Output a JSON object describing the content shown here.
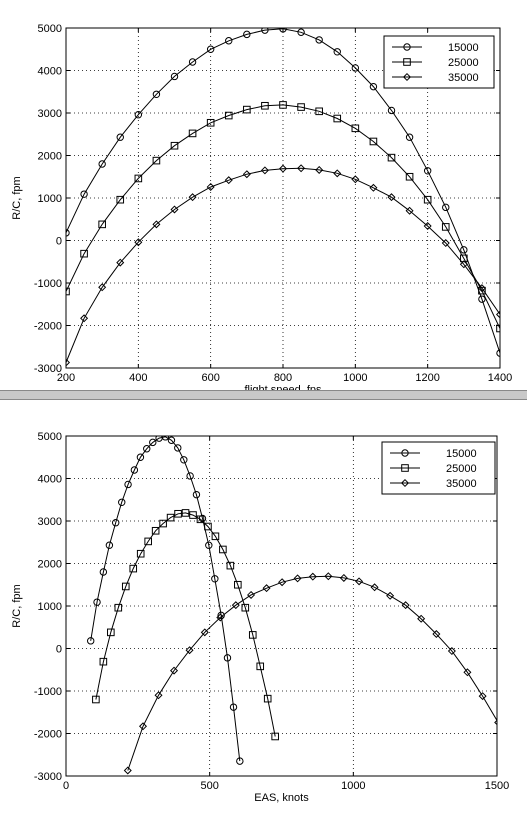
{
  "chart_data": [
    {
      "type": "line",
      "xlabel": "flight speed, fps",
      "ylabel": "R/C, fpm",
      "xlim": [
        200,
        1400
      ],
      "ylim": [
        -3000,
        5000
      ],
      "xticks": [
        200,
        400,
        600,
        800,
        1000,
        1200,
        1400
      ],
      "yticks": [
        -3000,
        -2000,
        -1000,
        0,
        1000,
        2000,
        3000,
        4000,
        5000
      ],
      "grid": true,
      "legend": "top-right",
      "series": [
        {
          "name": "15000",
          "marker": "circle",
          "x": [
            200,
            250,
            300,
            350,
            400,
            450,
            500,
            550,
            600,
            650,
            700,
            750,
            800,
            850,
            900,
            950,
            1000,
            1050,
            1100,
            1150,
            1200,
            1250,
            1300,
            1350,
            1400
          ],
          "y": [
            180,
            1090,
            1800,
            2430,
            2960,
            3440,
            3860,
            4200,
            4500,
            4700,
            4850,
            4950,
            4980,
            4900,
            4720,
            4440,
            4060,
            3620,
            3060,
            2430,
            1640,
            780,
            -220,
            -1380,
            -2650
          ]
        },
        {
          "name": "25000",
          "marker": "square",
          "x": [
            200,
            250,
            300,
            350,
            400,
            450,
            500,
            550,
            600,
            650,
            700,
            750,
            800,
            850,
            900,
            950,
            1000,
            1050,
            1100,
            1150,
            1200,
            1250,
            1300,
            1350,
            1400
          ],
          "y": [
            -1200,
            -310,
            380,
            960,
            1460,
            1880,
            2230,
            2520,
            2770,
            2940,
            3080,
            3170,
            3190,
            3140,
            3040,
            2870,
            2640,
            2330,
            1950,
            1500,
            960,
            320,
            -420,
            -1180,
            -2070
          ]
        },
        {
          "name": "35000",
          "marker": "diamond",
          "x": [
            200,
            250,
            300,
            350,
            400,
            450,
            500,
            550,
            600,
            650,
            700,
            750,
            800,
            850,
            900,
            950,
            1000,
            1050,
            1100,
            1150,
            1200,
            1250,
            1300,
            1350,
            1400
          ],
          "y": [
            -2870,
            -1830,
            -1100,
            -520,
            -40,
            380,
            730,
            1020,
            1260,
            1420,
            1560,
            1650,
            1690,
            1700,
            1660,
            1580,
            1440,
            1240,
            1020,
            700,
            340,
            -60,
            -560,
            -1120,
            -1740
          ]
        }
      ]
    },
    {
      "type": "line",
      "xlabel": "EAS, knots",
      "ylabel": "R/C, fpm",
      "xlim": [
        0,
        1500
      ],
      "ylim": [
        -3000,
        5000
      ],
      "xticks": [
        0,
        500,
        1000,
        1500
      ],
      "yticks": [
        -3000,
        -2000,
        -1000,
        0,
        1000,
        2000,
        3000,
        4000,
        5000
      ],
      "grid": true,
      "legend": "top-right",
      "series": [
        {
          "name": "15000",
          "marker": "circle",
          "x": [
            86,
            108,
            130,
            151,
            173,
            194,
            216,
            238,
            259,
            281,
            302,
            324,
            346,
            367,
            389,
            410,
            432,
            454,
            475,
            497,
            518,
            540,
            562,
            583,
            605
          ],
          "y": [
            180,
            1090,
            1800,
            2430,
            2960,
            3440,
            3860,
            4200,
            4500,
            4700,
            4850,
            4950,
            4980,
            4900,
            4720,
            4440,
            4060,
            3620,
            3060,
            2430,
            1640,
            780,
            -220,
            -1380,
            -2650
          ]
        },
        {
          "name": "25000",
          "marker": "square",
          "x": [
            104,
            130,
            156,
            182,
            208,
            234,
            260,
            286,
            312,
            338,
            364,
            390,
            416,
            442,
            468,
            494,
            520,
            546,
            572,
            598,
            624,
            650,
            676,
            702,
            728
          ],
          "y": [
            -1200,
            -310,
            380,
            960,
            1460,
            1880,
            2230,
            2520,
            2770,
            2940,
            3080,
            3170,
            3190,
            3140,
            3040,
            2870,
            2640,
            2330,
            1950,
            1500,
            960,
            320,
            -420,
            -1180,
            -2070
          ]
        },
        {
          "name": "35000",
          "marker": "diamond",
          "x": [
            215,
            268,
            322,
            376,
            430,
            483,
            537,
            591,
            644,
            698,
            752,
            806,
            859,
            913,
            967,
            1020,
            1074,
            1128,
            1182,
            1236,
            1289,
            1343,
            1397,
            1450,
            1504
          ],
          "y": [
            -2870,
            -1830,
            -1100,
            -520,
            -40,
            380,
            730,
            1020,
            1260,
            1420,
            1560,
            1650,
            1690,
            1700,
            1660,
            1580,
            1440,
            1240,
            1020,
            700,
            340,
            -60,
            -560,
            -1120,
            -1740
          ]
        }
      ]
    }
  ]
}
